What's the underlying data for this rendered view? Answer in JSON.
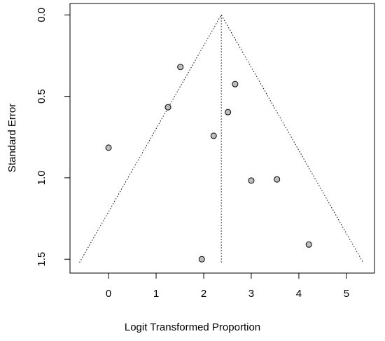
{
  "chart_data": {
    "type": "funnel",
    "xlabel": "Logit Transformed Proportion",
    "ylabel": "Standard Error",
    "x": [
      1.51,
      2.66,
      1.25,
      2.51,
      0,
      2.21,
      3.0,
      3.54,
      4.21,
      1.96
    ],
    "values": [
      0.32,
      0.425,
      0.567,
      0.597,
      0.815,
      0.742,
      1.017,
      1.01,
      1.41,
      1.5
    ],
    "color": "#bebebe",
    "center": 2.37,
    "funnel": {
      "x": [
        -0.61,
        2.37,
        5.35
      ],
      "y": [
        1.52,
        0,
        1.52
      ]
    },
    "xlim": [
      -0.81,
      5.59
    ],
    "xticks": [
      0,
      1,
      2,
      3,
      4,
      5
    ],
    "ylim": [
      -0.07,
      1.585
    ],
    "y_inverted": true,
    "yticks": [
      {
        "value": 0,
        "label": "0.0"
      },
      0.5,
      {
        "value": 1,
        "label": "1.0"
      },
      1.5
    ]
  }
}
